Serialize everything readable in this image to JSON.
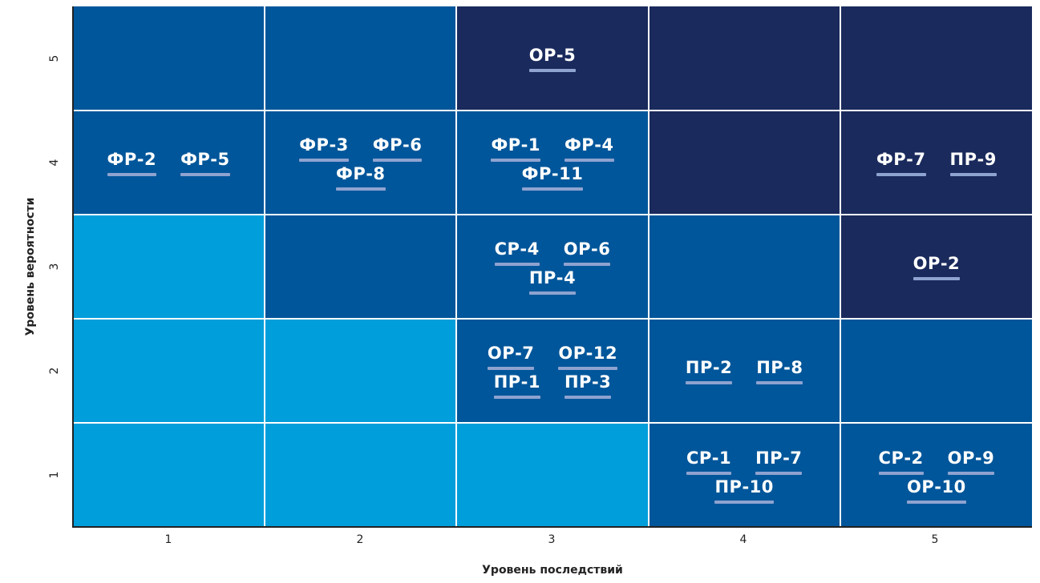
{
  "colors": {
    "low": "#009edb",
    "medium": "#00569a",
    "high": "#1a2a5c",
    "underline": "#8fa3d0"
  },
  "axes": {
    "x_title": "Уровень последствий",
    "y_title": "Уровень вероятности",
    "x_ticks": [
      "1",
      "2",
      "3",
      "4",
      "5"
    ],
    "y_ticks": [
      "5",
      "4",
      "3",
      "2",
      "1"
    ]
  },
  "rows": [
    {
      "probability": "5",
      "cells": [
        {
          "impact": "1",
          "level": "medium",
          "items": []
        },
        {
          "impact": "2",
          "level": "medium",
          "items": []
        },
        {
          "impact": "3",
          "level": "high",
          "items": [
            "ОР-5"
          ]
        },
        {
          "impact": "4",
          "level": "high",
          "items": []
        },
        {
          "impact": "5",
          "level": "high",
          "items": []
        }
      ]
    },
    {
      "probability": "4",
      "cells": [
        {
          "impact": "1",
          "level": "medium",
          "items": [
            "ФР-2",
            "ФР-5"
          ]
        },
        {
          "impact": "2",
          "level": "medium",
          "items": [
            "ФР-3",
            "ФР-6",
            "ФР-8"
          ]
        },
        {
          "impact": "3",
          "level": "medium",
          "items": [
            "ФР-1",
            "ФР-4",
            "ФР-11"
          ]
        },
        {
          "impact": "4",
          "level": "high",
          "items": []
        },
        {
          "impact": "5",
          "level": "high",
          "items": [
            "ФР-7",
            "ПР-9"
          ]
        }
      ]
    },
    {
      "probability": "3",
      "cells": [
        {
          "impact": "1",
          "level": "low",
          "items": []
        },
        {
          "impact": "2",
          "level": "medium",
          "items": []
        },
        {
          "impact": "3",
          "level": "medium",
          "items": [
            "СР-4",
            "ОР-6",
            "ПР-4"
          ]
        },
        {
          "impact": "4",
          "level": "medium",
          "items": []
        },
        {
          "impact": "5",
          "level": "high",
          "items": [
            "ОР-2"
          ]
        }
      ]
    },
    {
      "probability": "2",
      "cells": [
        {
          "impact": "1",
          "level": "low",
          "items": []
        },
        {
          "impact": "2",
          "level": "low",
          "items": []
        },
        {
          "impact": "3",
          "level": "medium",
          "items": [
            "ОР-7",
            "ОР-12",
            "ПР-1",
            "ПР-3"
          ]
        },
        {
          "impact": "4",
          "level": "medium",
          "items": [
            "ПР-2",
            "ПР-8"
          ]
        },
        {
          "impact": "5",
          "level": "medium",
          "items": []
        }
      ]
    },
    {
      "probability": "1",
      "cells": [
        {
          "impact": "1",
          "level": "low",
          "items": []
        },
        {
          "impact": "2",
          "level": "low",
          "items": []
        },
        {
          "impact": "3",
          "level": "low",
          "items": []
        },
        {
          "impact": "4",
          "level": "medium",
          "items": [
            "СР-1",
            "ПР-7",
            "ПР-10"
          ]
        },
        {
          "impact": "5",
          "level": "medium",
          "items": [
            "СР-2",
            "ОР-9",
            "ОР-10"
          ]
        }
      ]
    }
  ]
}
